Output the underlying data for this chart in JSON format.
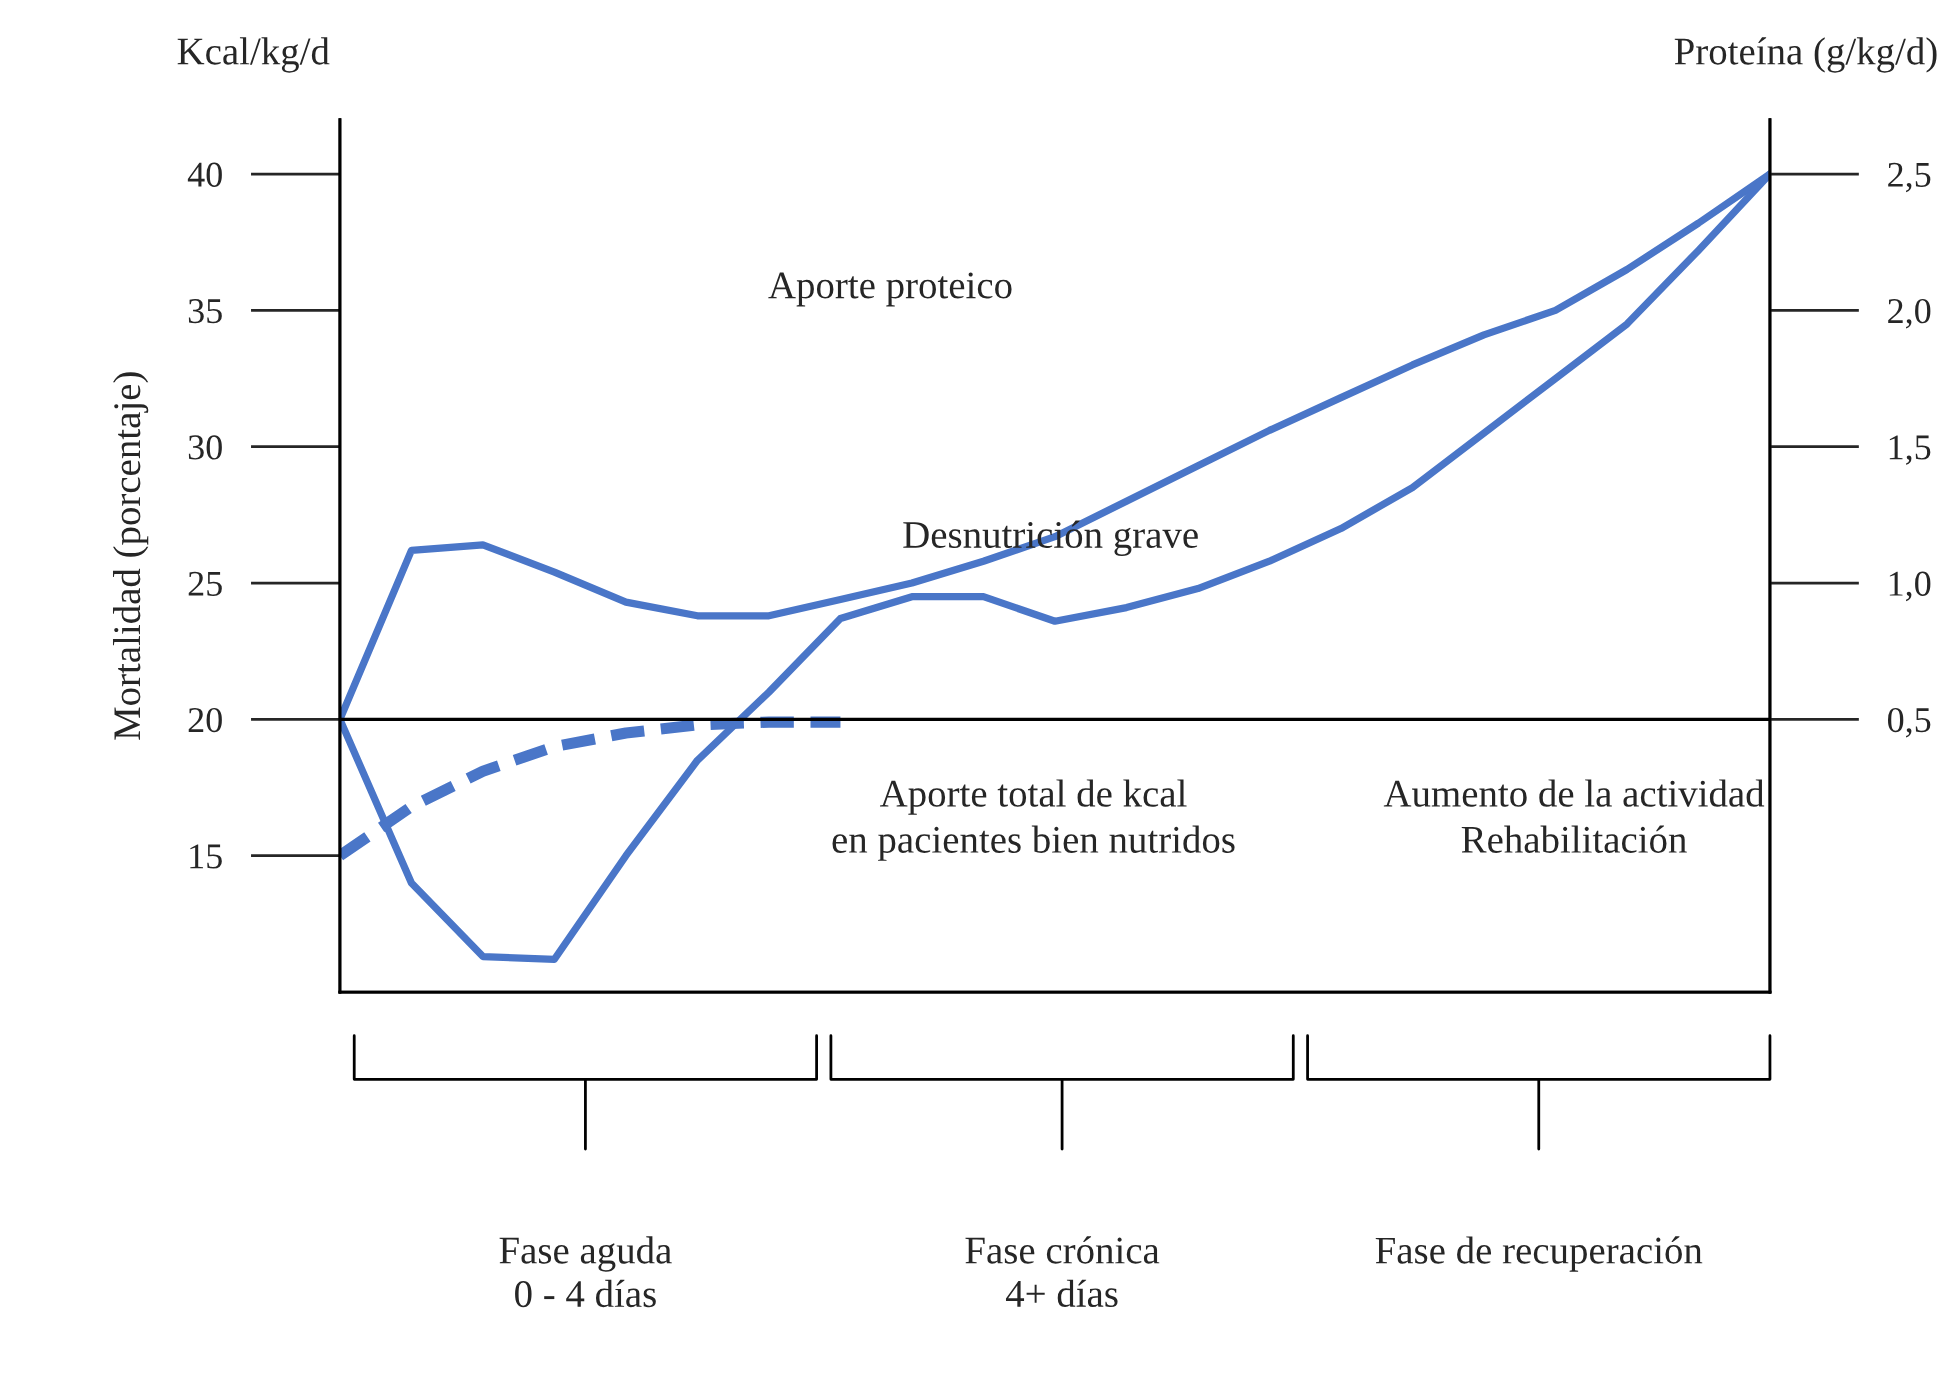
{
  "chart_data": {
    "type": "line",
    "ylabel": "Mortalidad (porcentaje)",
    "y2label": "Proteína (g/kg/d)",
    "categories": [
      null,
      null,
      null,
      null,
      null,
      null,
      null,
      null,
      null,
      null,
      null,
      null,
      null,
      null,
      null,
      null,
      null,
      null,
      null,
      null,
      null
    ],
    "ylim": [
      10,
      42
    ],
    "yticks": [
      15,
      20,
      25,
      30,
      35,
      40
    ],
    "y2lim": [
      -0.5,
      2.7
    ],
    "y2ticks": [
      {
        "value": 0.5,
        "label": "0,5"
      },
      {
        "value": 1.0,
        "label": "1,0"
      },
      {
        "value": 1.5,
        "label": "1,5"
      },
      {
        "value": 2.0,
        "label": "2,0"
      },
      {
        "value": 2.5,
        "label": "2,5"
      }
    ],
    "grid": false,
    "legend": false,
    "ref_lines": [
      {
        "axis": "y",
        "value": 20,
        "color": "#000000"
      }
    ],
    "series": [
      {
        "color": "#4a76c8",
        "line_style": "solid",
        "values": [
          20,
          26.2,
          26.4,
          25.4,
          24.3,
          23.8,
          23.8,
          24.4,
          25.0,
          25.8,
          26.7,
          28.0,
          29.3,
          30.6,
          31.8,
          33.0,
          34.1,
          35.0,
          36.5,
          38.2,
          40
        ]
      },
      {
        "color": "#4a76c8",
        "line_style": "solid",
        "values": [
          20,
          14.0,
          11.3,
          11.2,
          15.0,
          18.5,
          21.0,
          23.7,
          24.5,
          24.5,
          23.6,
          24.1,
          24.8,
          25.8,
          27.0,
          28.5,
          30.5,
          32.5,
          34.5,
          37.2,
          40
        ]
      },
      {
        "color": "#4a76c8",
        "line_style": "dashed",
        "values": [
          15,
          16.8,
          18.1,
          19.0,
          19.5,
          19.8,
          19.9,
          19.9,
          null,
          null,
          null,
          null,
          null,
          null,
          null,
          null,
          null,
          null,
          null,
          null,
          null
        ]
      }
    ],
    "annotations": [
      "Kcal/kg/d",
      "Fase aguda\n0 - 4 días",
      "Fase crónica\n4+ días",
      "Fase de recuperación",
      "Aporte proteico",
      "Desnutrición grave",
      "Aporte total de kcal\nen pacientes bien nutridos",
      "Aumento de la actividad\nRehabilitación"
    ]
  }
}
